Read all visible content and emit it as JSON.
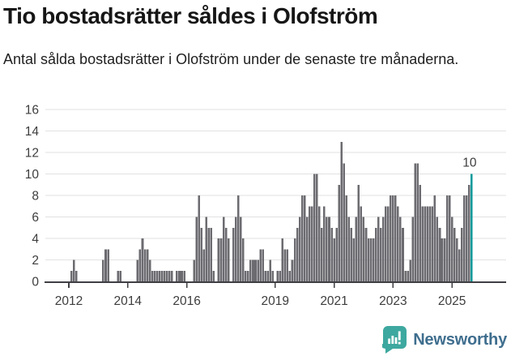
{
  "header": {
    "title": "Tio bostadsrätter såldes i Olofström",
    "subtitle": "Antal sålda bostadsrätter i Olofström under de senaste tre månaderna."
  },
  "chart_data": {
    "type": "bar",
    "title": "Tio bostadsrätter såldes i Olofström",
    "subtitle": "Antal sålda bostadsrätter i Olofström under de senaste tre månaderna.",
    "frequency": "monthly",
    "start": "2012-01",
    "end": "2025-09",
    "values": [
      0,
      1,
      2,
      1,
      0,
      0,
      0,
      0,
      0,
      0,
      0,
      0,
      0,
      0,
      2,
      3,
      3,
      0,
      0,
      0,
      1,
      1,
      0,
      0,
      0,
      0,
      0,
      0,
      2,
      3,
      4,
      3,
      3,
      2,
      1,
      1,
      1,
      1,
      1,
      1,
      1,
      1,
      1,
      0,
      1,
      1,
      1,
      1,
      0,
      0,
      0,
      2,
      6,
      8,
      5,
      3,
      6,
      5,
      5,
      1,
      0,
      4,
      4,
      6,
      5,
      4,
      0,
      5,
      6,
      8,
      6,
      4,
      1,
      1,
      2,
      2,
      2,
      2,
      3,
      3,
      1,
      1,
      2,
      1,
      0,
      1,
      1,
      4,
      3,
      3,
      1,
      2,
      4,
      5,
      6,
      8,
      8,
      6,
      7,
      7,
      10,
      10,
      7,
      5,
      7,
      6,
      6,
      5,
      4,
      5,
      9,
      13,
      11,
      8,
      6,
      5,
      4,
      6,
      9,
      7,
      6,
      5,
      4,
      4,
      4,
      5,
      6,
      5,
      6,
      7,
      7,
      8,
      8,
      8,
      7,
      6,
      5,
      1,
      1,
      2,
      6,
      11,
      11,
      9,
      7,
      7,
      7,
      7,
      7,
      8,
      6,
      5,
      4,
      4,
      8,
      8,
      6,
      5,
      4,
      3,
      5,
      8,
      8,
      9,
      10
    ],
    "last_value": 10,
    "last_value_label": "10",
    "highlight_last": true,
    "ylim": [
      0,
      16
    ],
    "yticks": [
      0,
      2,
      4,
      6,
      8,
      10,
      12,
      14,
      16
    ],
    "xtick_years": [
      2012,
      2014,
      2016,
      2019,
      2021,
      2023,
      2025
    ],
    "grid": true,
    "legend": "none",
    "xlabel": "",
    "ylabel": ""
  },
  "colors": {
    "bar": "#6b6b70",
    "highlight": "#00999b",
    "gridline": "#e2e2e2",
    "axis_line": "#3f3f44",
    "axis_text": "#3d3d3d",
    "annotation_text": "#3d3d3d",
    "logo_teal": "#3da89f",
    "brand_text": "#3f6e8e"
  },
  "footer": {
    "brand": "Newsworthy"
  }
}
